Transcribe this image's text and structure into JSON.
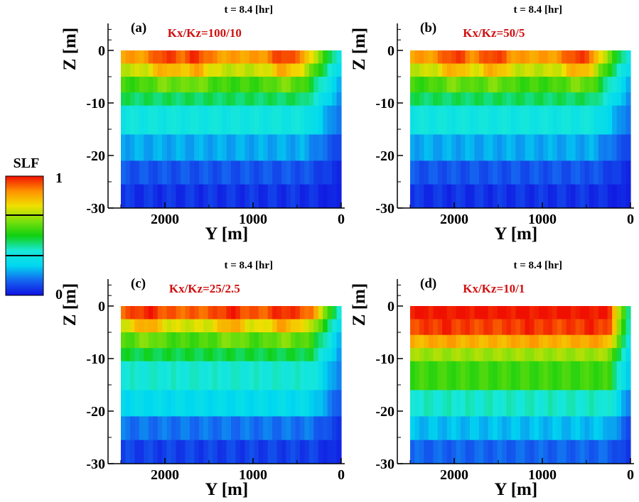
{
  "colorbar": {
    "title": "SLF",
    "max_label": "1",
    "min_label": "0",
    "range": [
      0,
      1
    ],
    "colormap": [
      "#1010e0",
      "#1466f0",
      "#00d8f0",
      "#18e8d8",
      "#10d010",
      "#7ee00c",
      "#f0e000",
      "#ff9000",
      "#f01000"
    ]
  },
  "chart_data": [
    {
      "type": "heatmap",
      "panel_label": "(a)",
      "title": "t = 8.4 [hr]",
      "annotation": "Kx/Kz=100/10",
      "xlabel": "Y [m]",
      "ylabel": "Z [m]",
      "xlim": [
        2500,
        0
      ],
      "ylim": [
        -30,
        0
      ],
      "xticks": [
        "2000",
        "1000",
        "0"
      ],
      "yticks": [
        "0",
        "-10",
        "-20",
        "-30"
      ],
      "bands": [
        {
          "z_top": 0,
          "z_bottom": -2.5,
          "slf": 0.85
        },
        {
          "z_top": -2.5,
          "z_bottom": -5,
          "slf": 0.7
        },
        {
          "z_top": -5,
          "z_bottom": -8,
          "slf": 0.55
        },
        {
          "z_top": -8,
          "z_bottom": -10.5,
          "slf": 0.45
        },
        {
          "z_top": -10.5,
          "z_bottom": -16,
          "slf": 0.34
        },
        {
          "z_top": -16,
          "z_bottom": -21,
          "slf": 0.2
        },
        {
          "z_top": -21,
          "z_bottom": -25.5,
          "slf": 0.1
        },
        {
          "z_top": -25.5,
          "z_bottom": -30,
          "slf": 0.05
        }
      ],
      "shore_front_y": 420,
      "peaks": [
        {
          "y": 2000,
          "slf": 1.0
        },
        {
          "y": 1650,
          "slf": 1.0
        },
        {
          "y": 650,
          "slf": 1.0
        }
      ]
    },
    {
      "type": "heatmap",
      "panel_label": "(b)",
      "title": "t = 8.4 [hr]",
      "annotation": "Kx/Kz=50/5",
      "xlabel": "Y [m]",
      "ylabel": "Z [m]",
      "xlim": [
        2500,
        0
      ],
      "ylim": [
        -30,
        0
      ],
      "xticks": [
        "2000",
        "1000",
        "0"
      ],
      "yticks": [
        "0",
        "-10",
        "-20",
        "-30"
      ],
      "bands": [
        {
          "z_top": 0,
          "z_bottom": -2.5,
          "slf": 0.85
        },
        {
          "z_top": -2.5,
          "z_bottom": -5,
          "slf": 0.7
        },
        {
          "z_top": -5,
          "z_bottom": -8,
          "slf": 0.55
        },
        {
          "z_top": -8,
          "z_bottom": -10.5,
          "slf": 0.45
        },
        {
          "z_top": -10.5,
          "z_bottom": -16,
          "slf": 0.34
        },
        {
          "z_top": -16,
          "z_bottom": -21,
          "slf": 0.2
        },
        {
          "z_top": -21,
          "z_bottom": -25.5,
          "slf": 0.1
        },
        {
          "z_top": -25.5,
          "z_bottom": -30,
          "slf": 0.05
        }
      ],
      "shore_front_y": 420,
      "peaks": [
        {
          "y": 2000,
          "slf": 1.0
        },
        {
          "y": 1550,
          "slf": 1.0
        },
        {
          "y": 600,
          "slf": 1.0
        }
      ]
    },
    {
      "type": "heatmap",
      "panel_label": "(c)",
      "title": "t = 8.4 [hr]",
      "annotation": "Kx/Kz=25/2.5",
      "xlabel": "Y [m]",
      "ylabel": "Z [m]",
      "xlim": [
        2500,
        0
      ],
      "ylim": [
        -30,
        0
      ],
      "xticks": [
        "2000",
        "1000",
        "0"
      ],
      "yticks": [
        "0",
        "-10",
        "-20",
        "-30"
      ],
      "bands": [
        {
          "z_top": 0,
          "z_bottom": -2.5,
          "slf": 0.92
        },
        {
          "z_top": -2.5,
          "z_bottom": -5,
          "slf": 0.72
        },
        {
          "z_top": -5,
          "z_bottom": -8,
          "slf": 0.56
        },
        {
          "z_top": -8,
          "z_bottom": -10.5,
          "slf": 0.47
        },
        {
          "z_top": -10.5,
          "z_bottom": -16,
          "slf": 0.37
        },
        {
          "z_top": -16,
          "z_bottom": -21,
          "slf": 0.27
        },
        {
          "z_top": -21,
          "z_bottom": -25.5,
          "slf": 0.14
        },
        {
          "z_top": -25.5,
          "z_bottom": -30,
          "slf": 0.07
        }
      ],
      "shore_front_y": 350,
      "peaks": [
        {
          "y": 2200,
          "slf": 1.0
        },
        {
          "y": 1250,
          "slf": 1.0
        },
        {
          "y": 650,
          "slf": 1.0
        }
      ]
    },
    {
      "type": "heatmap",
      "panel_label": "(d)",
      "title": "t = 8.4 [hr]",
      "annotation": "Kx/Kz=10/1",
      "xlabel": "Y [m]",
      "ylabel": "Z [m]",
      "xlim": [
        2500,
        0
      ],
      "ylim": [
        -30,
        0
      ],
      "xticks": [
        "2000",
        "1000",
        "0"
      ],
      "yticks": [
        "0",
        "-10",
        "-20",
        "-30"
      ],
      "bands": [
        {
          "z_top": 0,
          "z_bottom": -2.5,
          "slf": 1.0
        },
        {
          "z_top": -2.5,
          "z_bottom": -5.5,
          "slf": 0.95
        },
        {
          "z_top": -5.5,
          "z_bottom": -8,
          "slf": 0.82
        },
        {
          "z_top": -8,
          "z_bottom": -10.5,
          "slf": 0.66
        },
        {
          "z_top": -10.5,
          "z_bottom": -16,
          "slf": 0.55
        },
        {
          "z_top": -16,
          "z_bottom": -21,
          "slf": 0.38
        },
        {
          "z_top": -21,
          "z_bottom": -25.5,
          "slf": 0.22
        },
        {
          "z_top": -25.5,
          "z_bottom": -30,
          "slf": 0.12
        }
      ],
      "shore_front_y": 250,
      "peaks": [
        {
          "y": 2100,
          "slf": 1.0
        },
        {
          "y": 1150,
          "slf": 1.0
        },
        {
          "y": 450,
          "slf": 1.0
        }
      ]
    }
  ]
}
